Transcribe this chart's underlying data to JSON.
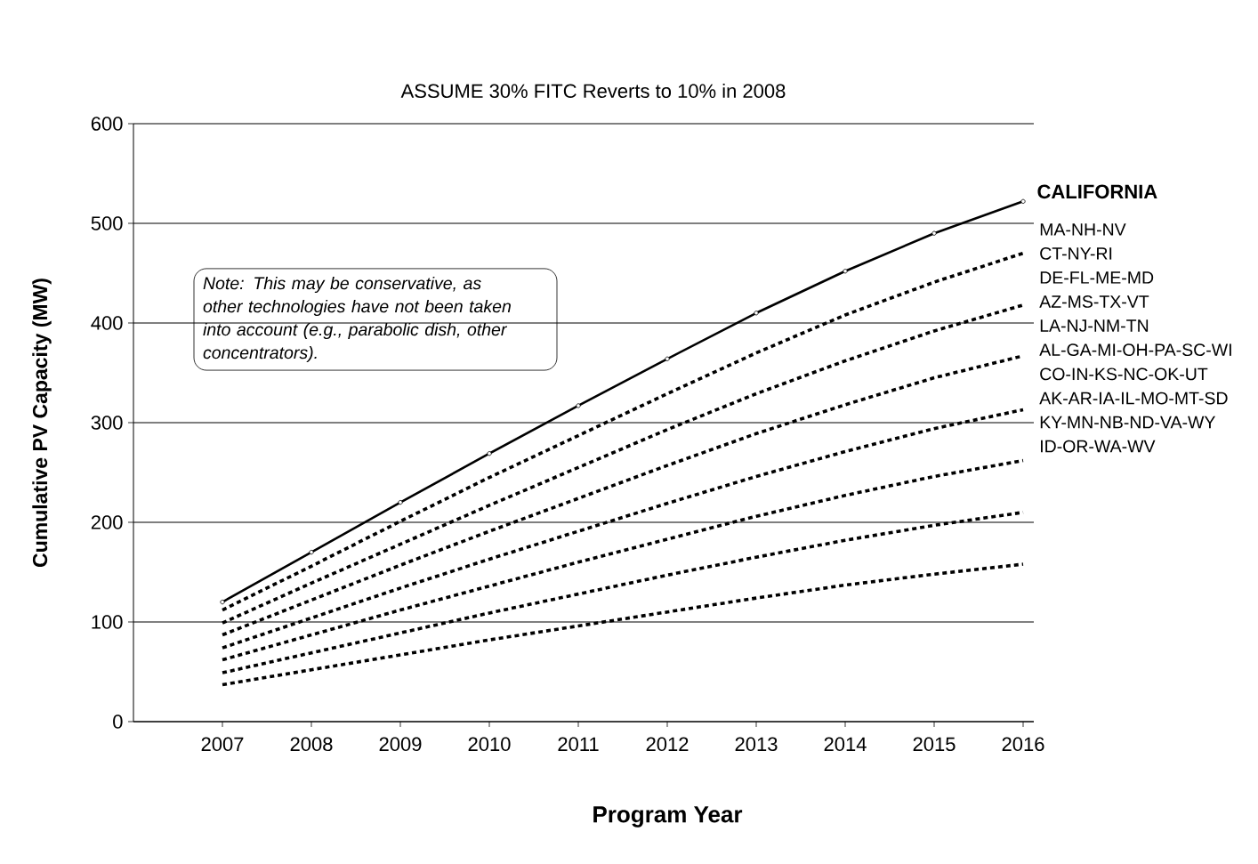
{
  "chart_data": {
    "type": "line",
    "title": "ASSUME 30% FITC Reverts to 10% in 2008",
    "xlabel": "Program Year",
    "ylabel": "Cumulative PV Capacity (MW)",
    "x": [
      2007,
      2008,
      2009,
      2010,
      2011,
      2012,
      2013,
      2014,
      2015,
      2016
    ],
    "xlim": [
      2006,
      2016.12
    ],
    "ylim": [
      0,
      600
    ],
    "xticks": [
      2007,
      2008,
      2009,
      2010,
      2011,
      2012,
      2013,
      2014,
      2015,
      2016
    ],
    "yticks": [
      0,
      100,
      200,
      300,
      400,
      500,
      600
    ],
    "grid": "y",
    "series": [
      {
        "name": "CALIFORNIA",
        "color": "#000000",
        "line_style": "solid",
        "marker": "circle",
        "values": [
          120,
          170,
          220,
          269,
          317,
          364,
          410,
          452,
          490,
          522
        ]
      },
      {
        "color": "#000000",
        "line_style": "dashed",
        "marker": "none",
        "values": [
          112,
          156,
          201,
          245,
          287,
          329,
          370,
          408,
          441,
          470
        ]
      },
      {
        "color": "#000000",
        "line_style": "dashed",
        "marker": "none",
        "values": [
          99,
          139,
          178,
          217,
          255,
          293,
          329,
          362,
          392,
          418
        ]
      },
      {
        "color": "#000000",
        "line_style": "dashed",
        "marker": "none",
        "values": [
          87,
          122,
          157,
          191,
          224,
          257,
          289,
          318,
          345,
          367
        ]
      },
      {
        "color": "#000000",
        "line_style": "dashed",
        "marker": "none",
        "values": [
          74,
          104,
          134,
          163,
          191,
          219,
          246,
          271,
          294,
          313
        ]
      },
      {
        "color": "#000000",
        "line_style": "dashed",
        "marker": "none",
        "values": [
          62,
          87,
          112,
          136,
          160,
          183,
          206,
          227,
          246,
          262
        ]
      },
      {
        "color": "#000000",
        "line_style": "dashed",
        "marker": "none",
        "values": [
          49,
          69,
          89,
          109,
          128,
          147,
          165,
          182,
          197,
          210
        ]
      },
      {
        "color": "#000000",
        "line_style": "dashed",
        "marker": "none",
        "values": [
          37,
          52,
          67,
          82,
          96,
          110,
          124,
          137,
          148,
          158
        ]
      }
    ],
    "annotations": [
      "Note: This may be conservative, as other technologies have not been taken into account (e.g., parabolic dish, other concentrators).",
      "MA-NH-NV",
      "CT-NY-RI",
      "DE-FL-ME-MD",
      "AZ-MS-TX-VT",
      "LA-NJ-NM-TN",
      "AL-GA-MI-OH-PA-SC-WI",
      "CO-IN-KS-NC-OK-UT",
      "AK-AR-IA-IL-MO-MT-SD",
      "KY-MN-NB-ND-VA-WY",
      "ID-OR-WA-WV"
    ]
  }
}
